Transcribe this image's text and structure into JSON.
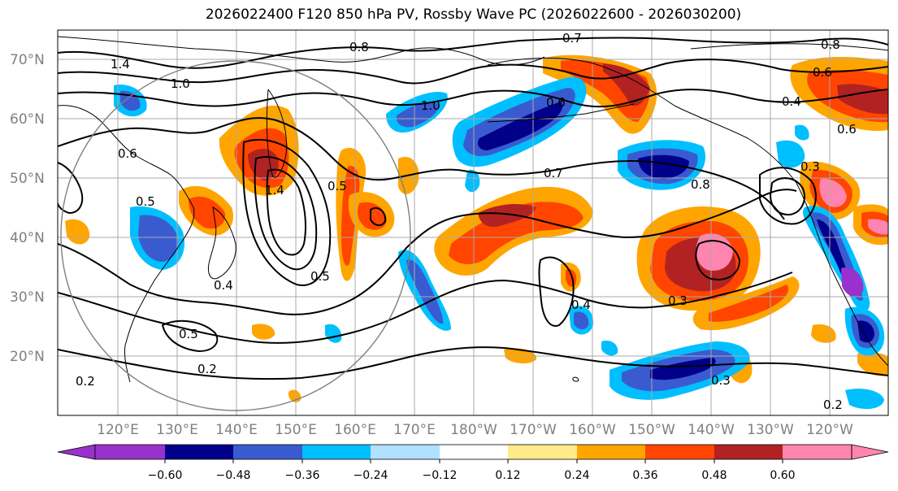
{
  "title": "2026022400 F120 850 hPa PV, Rossby Wave PC (2026022600 - 2026030200)",
  "lat_labels": [
    "70°N",
    "60°N",
    "50°N",
    "40°N",
    "30°N",
    "20°N"
  ],
  "lon_labels": [
    "120°E",
    "130°E",
    "140°E",
    "150°E",
    "160°E",
    "170°E",
    "180°W",
    "170°W",
    "160°W",
    "150°W",
    "140°W",
    "130°W",
    "120°W"
  ],
  "contour_labels": [
    "1.4",
    "1.0",
    "0.8",
    "0.7",
    "0.6",
    "1.0",
    "0.4",
    "0.6",
    "0.6",
    "0.8",
    "0.6",
    "0.5",
    "1.4",
    "0.5",
    "0.7",
    "0.8",
    "0.5",
    "0.4",
    "0.3",
    "0.2",
    "0.2",
    "0.3",
    "0.3",
    "0.2",
    "0.4",
    "0.5"
  ],
  "colorbar": {
    "ticks": [
      "−0.60",
      "−0.48",
      "−0.36",
      "−0.24",
      "−0.12",
      "0.12",
      "0.24",
      "0.36",
      "0.48",
      "0.60"
    ],
    "colors": [
      "#9932cc",
      "#00008b",
      "#3a5bd0",
      "#00bfff",
      "#b0e2ff",
      "#ffffff",
      "#ffeb8a",
      "#ffa500",
      "#ff4500",
      "#b22222",
      "#ff85b0",
      "#ff85b0"
    ]
  },
  "palette": {
    "neg_dark": "#00008b",
    "neg_mid": "#3a5bd0",
    "neg_light": "#00bfff",
    "pos_light": "#ffa500",
    "pos_mid": "#ff4500",
    "pos_dark": "#b22222",
    "pos_pink": "#ff85b0",
    "grid": "#a9a9a9",
    "axis_text": "#808080"
  }
}
